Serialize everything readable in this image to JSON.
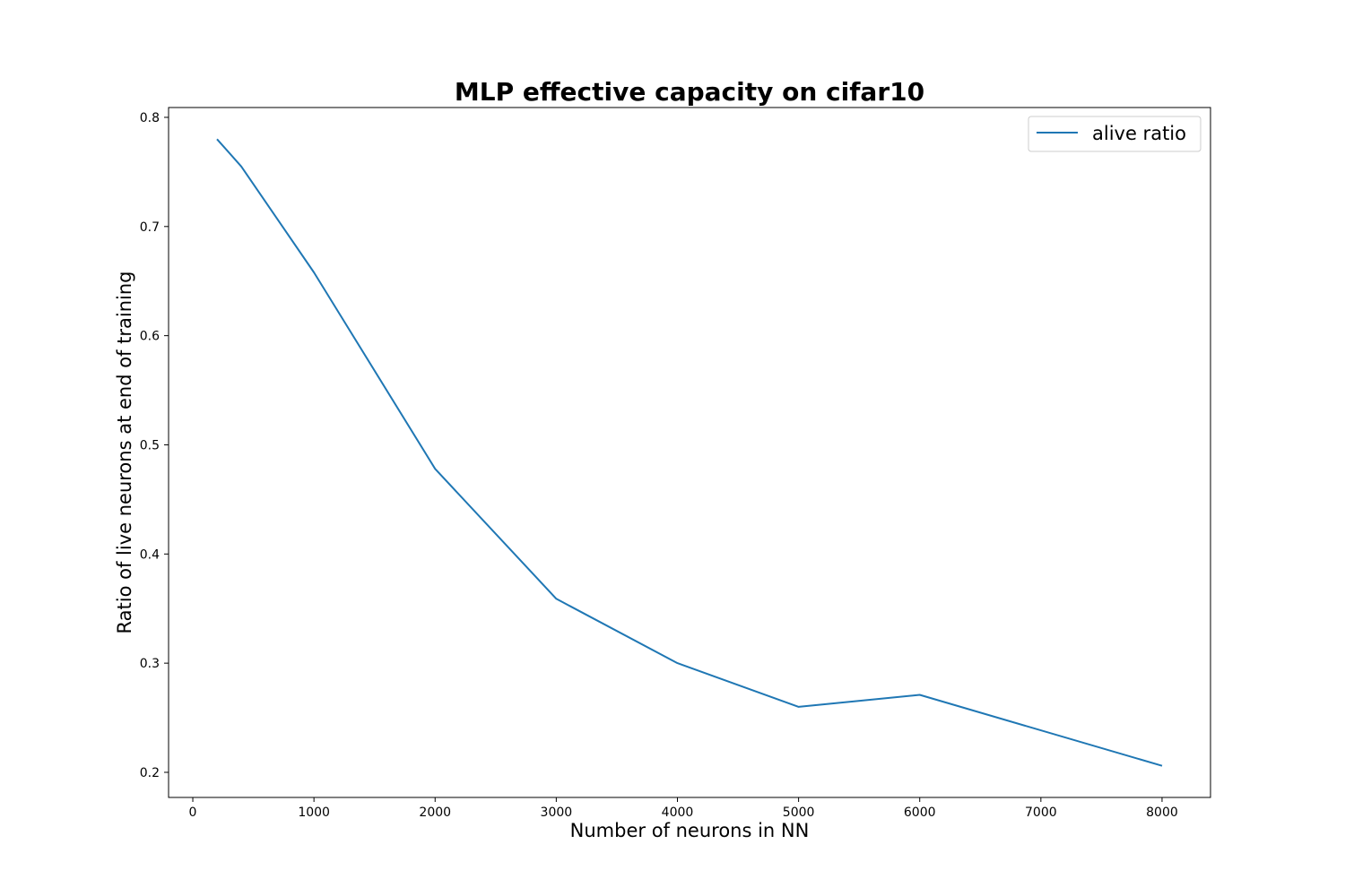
{
  "chart_data": {
    "type": "line",
    "title": "MLP effective capacity on cifar10",
    "xlabel": "Number of neurons in NN",
    "ylabel": "Ratio of live neurons at end of training",
    "xlim": [
      -200,
      8400
    ],
    "ylim": [
      0.177,
      0.809
    ],
    "xticks": [
      0,
      1000,
      2000,
      3000,
      4000,
      5000,
      6000,
      7000,
      8000
    ],
    "xtick_labels": [
      "0",
      "1000",
      "2000",
      "3000",
      "4000",
      "5000",
      "6000",
      "7000",
      "8000"
    ],
    "yticks": [
      0.2,
      0.3,
      0.4,
      0.5,
      0.6,
      0.7,
      0.8
    ],
    "ytick_labels": [
      "0.2",
      "0.3",
      "0.4",
      "0.5",
      "0.6",
      "0.7",
      "0.8"
    ],
    "grid": false,
    "legend_position": "top-right",
    "series": [
      {
        "name": "alive ratio",
        "color": "#1f77b4",
        "x": [
          200,
          400,
          1000,
          2000,
          3000,
          4000,
          5000,
          6000,
          8000
        ],
        "y": [
          0.78,
          0.755,
          0.658,
          0.478,
          0.359,
          0.3,
          0.26,
          0.271,
          0.206
        ]
      }
    ]
  }
}
